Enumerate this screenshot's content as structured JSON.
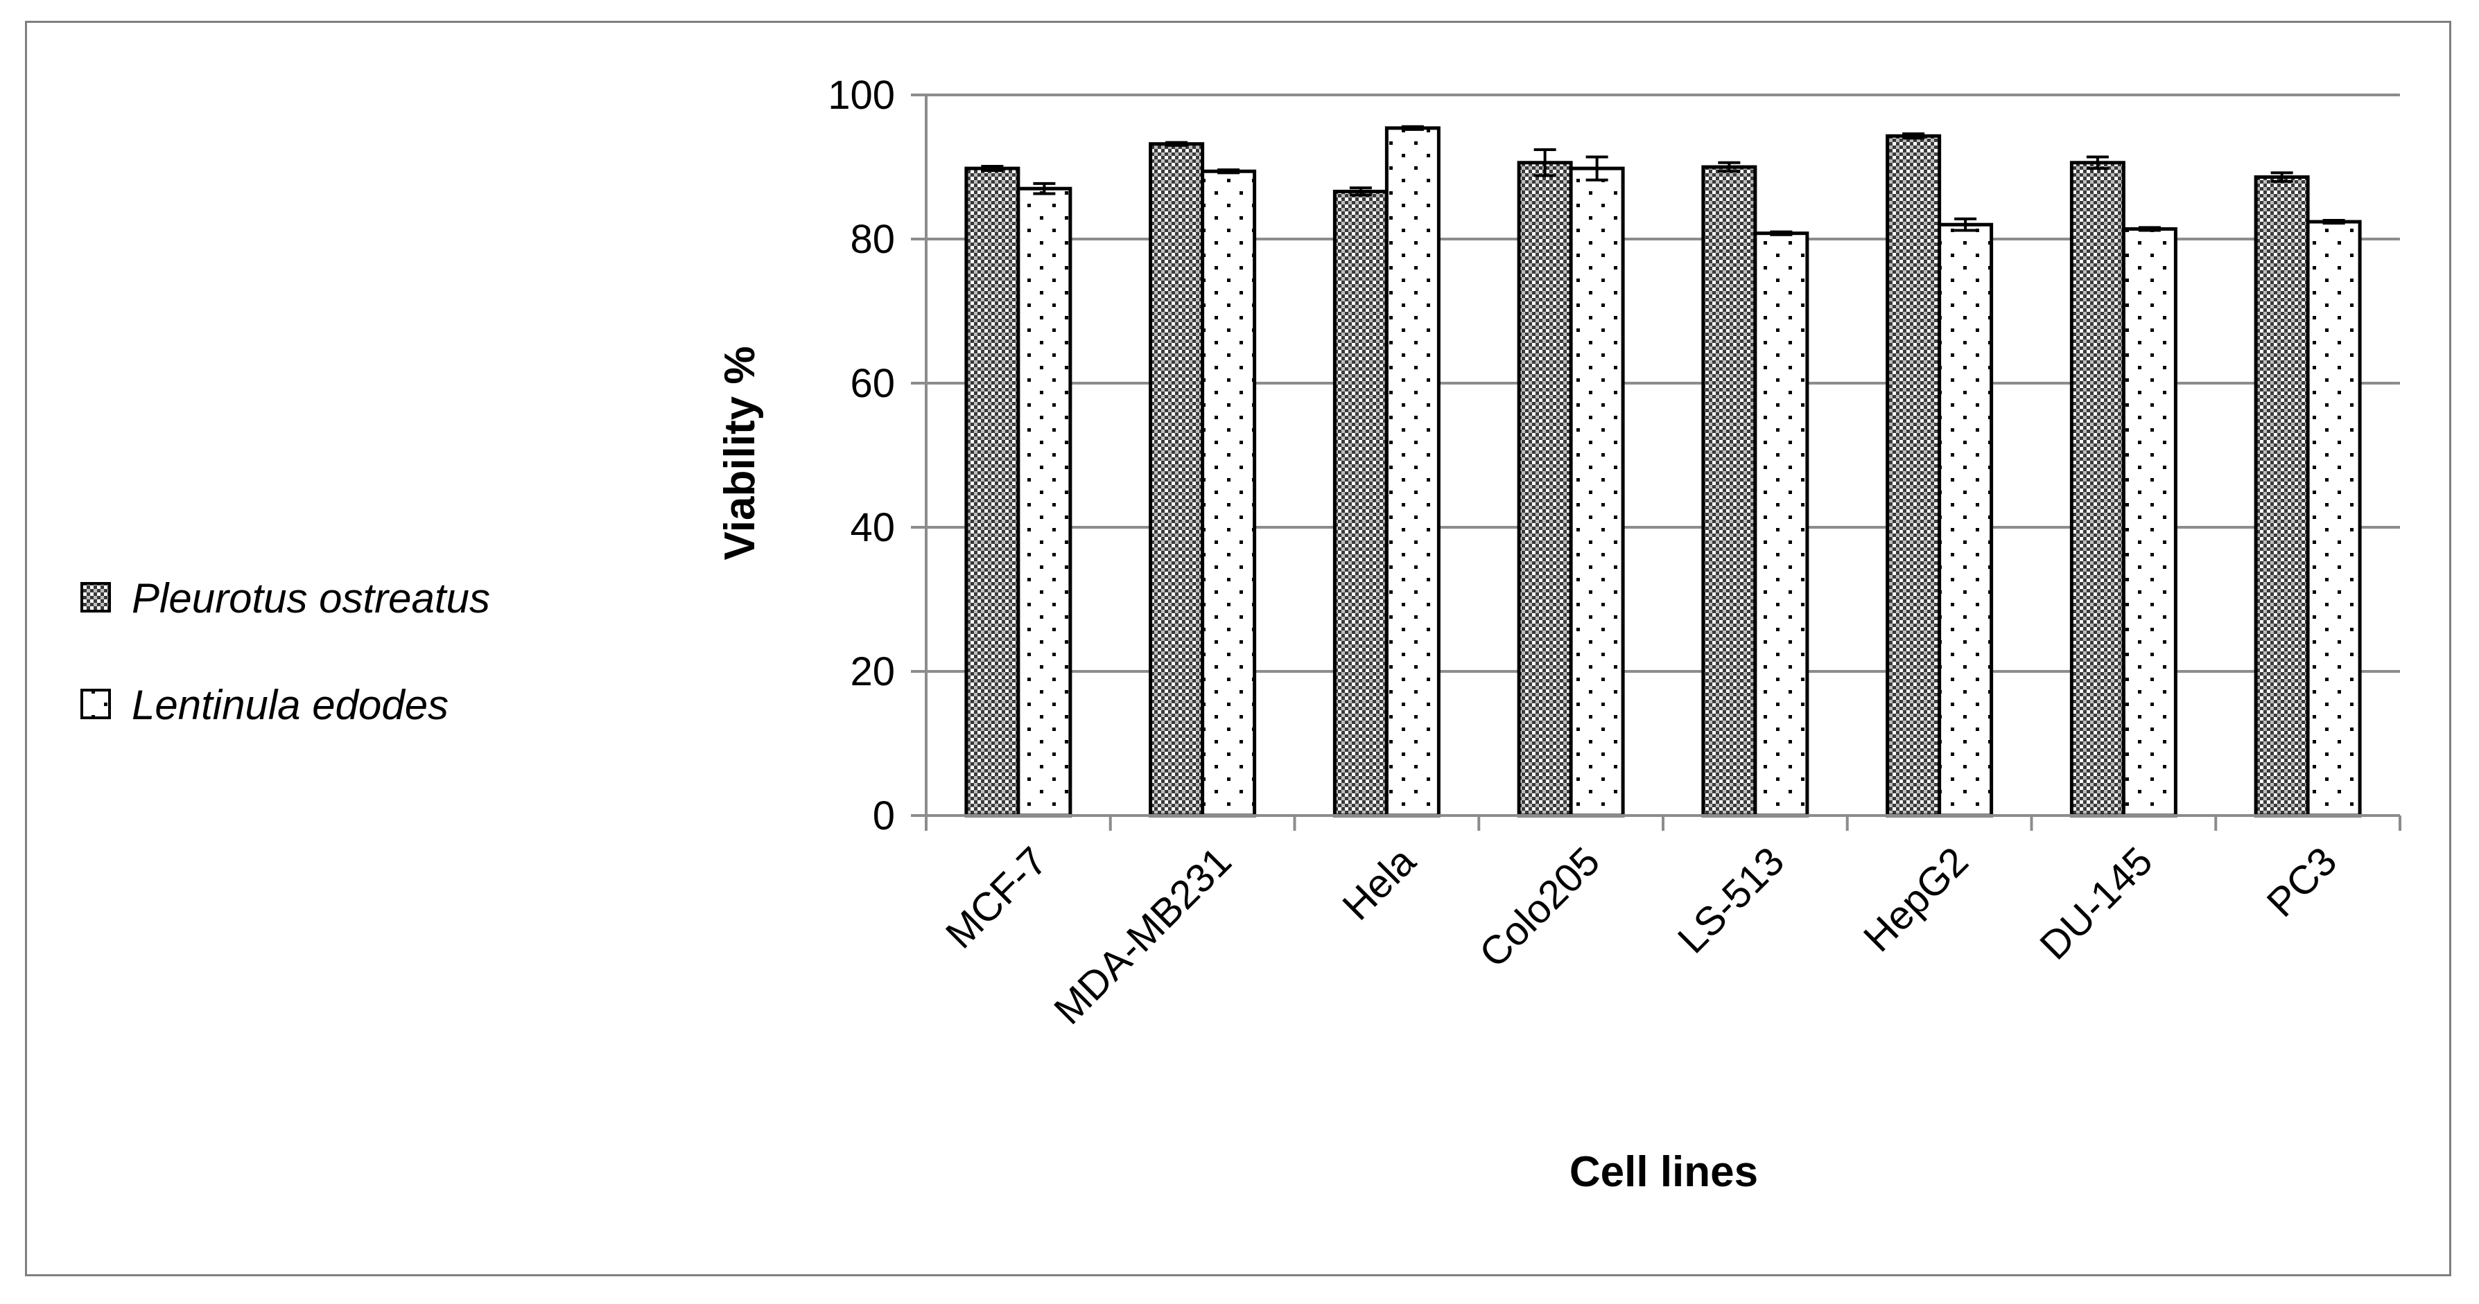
{
  "chart_data": {
    "type": "bar",
    "xlabel": "Cell lines",
    "ylabel": "Viability %",
    "ylim": [
      0,
      100
    ],
    "yticks": [
      0,
      20,
      40,
      60,
      80,
      100
    ],
    "grid": true,
    "legend_position": "left",
    "categories": [
      "MCF-7",
      "MDA-MB231",
      "Hela",
      "Colo205",
      "LS-513",
      "HepG2",
      "DU-145",
      "PC3"
    ],
    "series": [
      {
        "name": "Pleurotus ostreatus",
        "pattern": "dense-checker",
        "values": [
          89.8,
          93.2,
          86.6,
          90.6,
          90.0,
          94.3,
          90.6,
          88.6
        ],
        "errors": [
          0.3,
          0.2,
          0.5,
          1.8,
          0.6,
          0.3,
          0.8,
          0.6
        ]
      },
      {
        "name": "Lentinula edodes",
        "pattern": "sparse-dots",
        "values": [
          87.0,
          89.4,
          95.4,
          89.8,
          80.8,
          82.0,
          81.4,
          82.4
        ],
        "errors": [
          0.7,
          0.2,
          0.2,
          1.6,
          0.2,
          0.8,
          0.2,
          0.2
        ]
      }
    ],
    "colors": {
      "grid": "#8c8c8c",
      "axis": "#8c8c8c",
      "bar_stroke": "#000000",
      "frame": "#7f7f7f"
    }
  }
}
